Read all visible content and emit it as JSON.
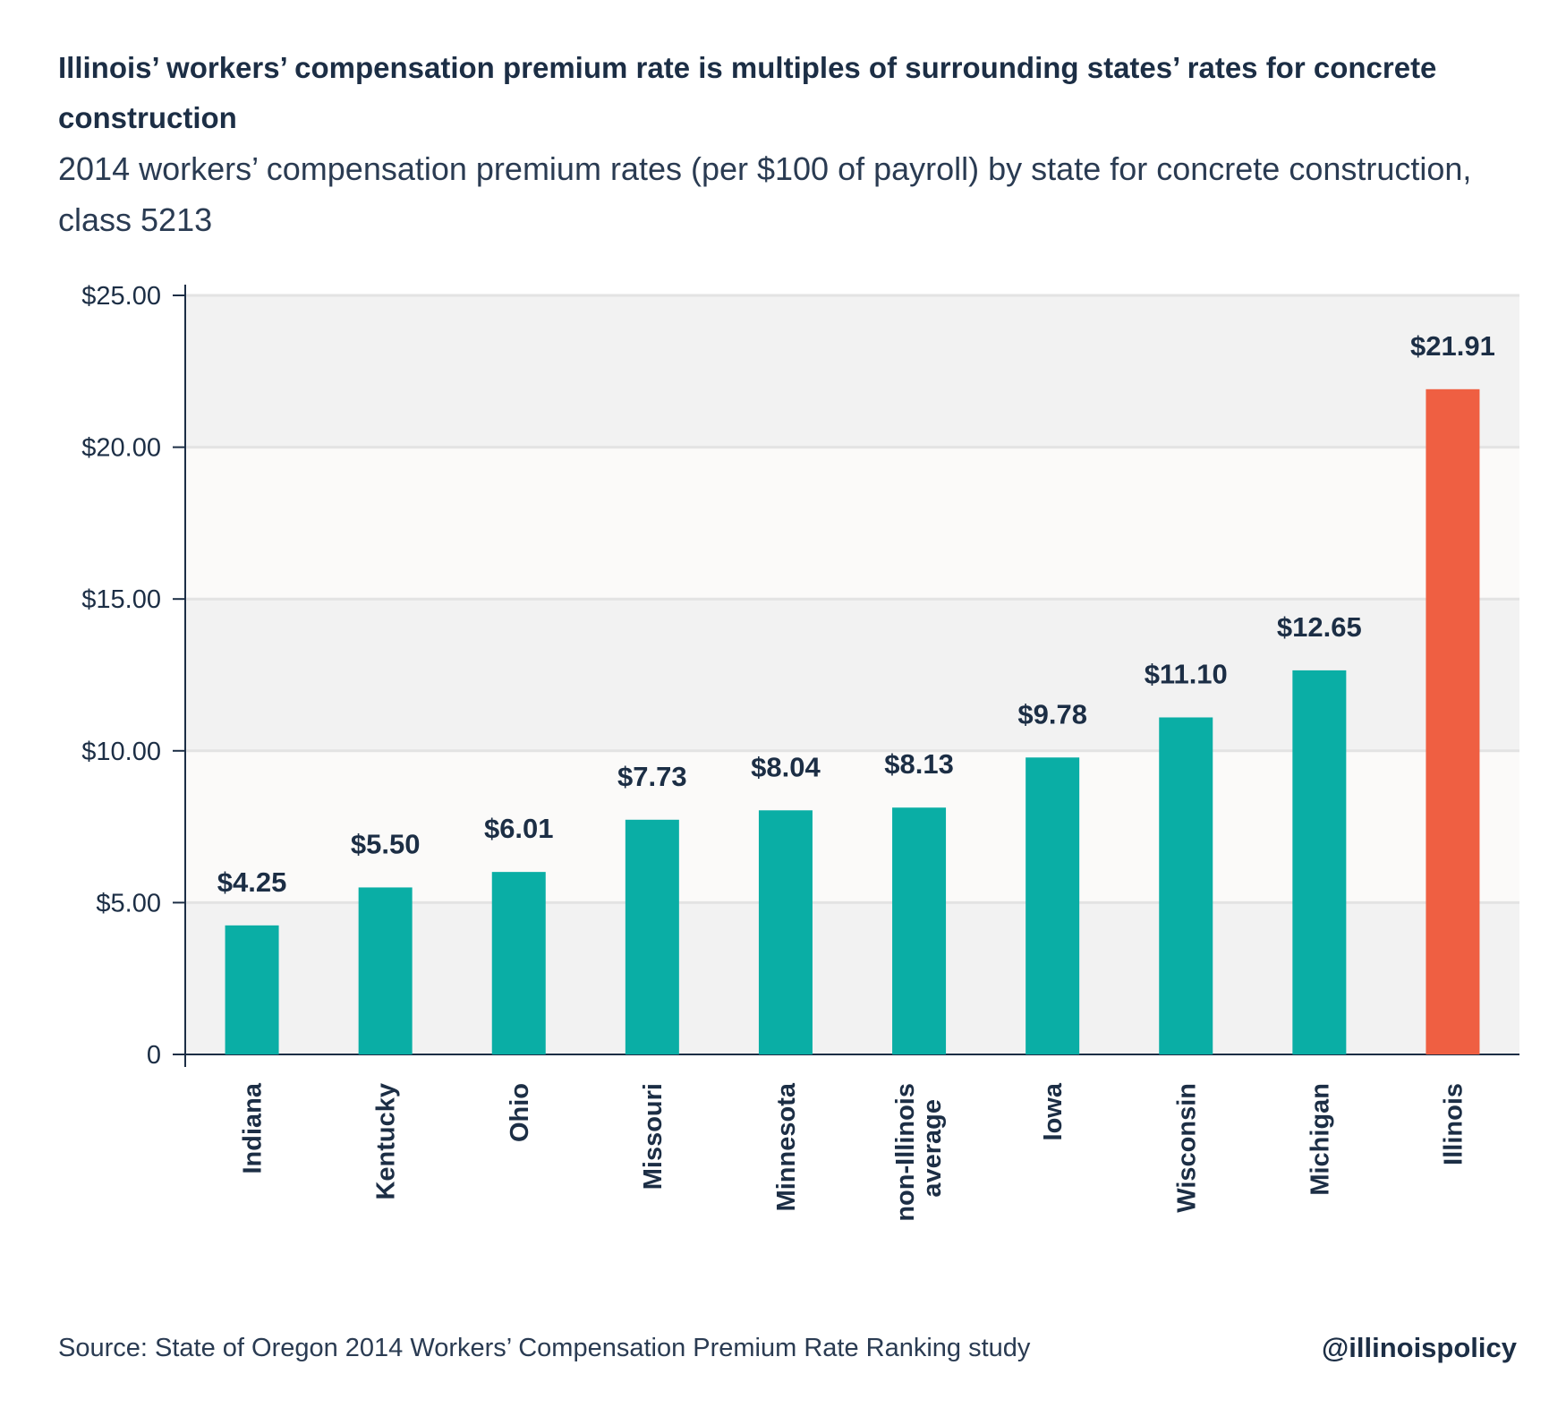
{
  "title": "Illinois’ workers’ compensation premium rate is multiples of surrounding states’ rates for concrete construction",
  "subtitle": "2014 workers’ compensation premium rates (per $100 of payroll) by state for concrete construction, class 5213",
  "source": "Source: State of Oregon 2014 Workers’ Compensation Premium Rate Ranking study",
  "handle": "@illinoispolicy",
  "chart_data": {
    "type": "bar",
    "categories": [
      "Indiana",
      "Kentucky",
      "Ohio",
      "Missouri",
      "Minnesota",
      "non-Illinois average",
      "Iowa",
      "Wisconsin",
      "Michigan",
      "Illinois"
    ],
    "values": [
      4.25,
      5.5,
      6.01,
      7.73,
      8.04,
      8.13,
      9.78,
      11.1,
      12.65,
      21.91
    ],
    "data_labels": [
      "$4.25",
      "$5.50",
      "$6.01",
      "$7.73",
      "$8.04",
      "$8.13",
      "$9.78",
      "$11.10",
      "$12.65",
      "$21.91"
    ],
    "ylim": [
      0,
      25
    ],
    "yticks": [
      0,
      5,
      10,
      15,
      20,
      25
    ],
    "ytick_labels": [
      "0",
      "$5.00",
      "$10.00",
      "$15.00",
      "$20.00",
      "$25.00"
    ],
    "grid": true,
    "colors": {
      "default": "#0aaea5",
      "highlight": "#ef5f42",
      "band_dark": "#f2f2f2",
      "band_light": "#fbfaf9",
      "text": "#1c2e45"
    },
    "highlight_category": "Illinois"
  }
}
